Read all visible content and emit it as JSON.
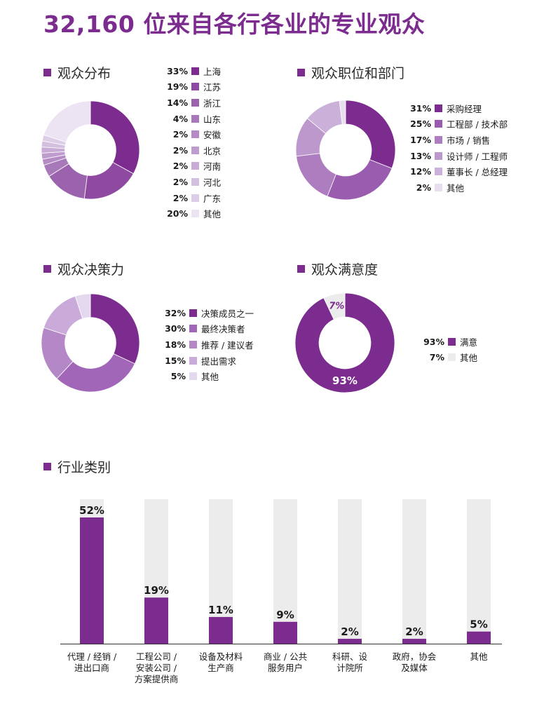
{
  "page": {
    "title": "32,160 位来自各行各业的专业观众"
  },
  "colors": {
    "accent": "#7b2c8e",
    "bar_background": "#ececec",
    "palette": [
      "#7b2c8e",
      "#8e4aa1",
      "#9b63ae",
      "#a779b9",
      "#b48bc4",
      "#be9ccd",
      "#c8acd6",
      "#d3bfe0",
      "#ddcde7",
      "#ece4f2"
    ]
  },
  "chart_data": [
    {
      "type": "pie",
      "title": "观众分布",
      "labels": [
        "上海",
        "江苏",
        "浙江",
        "山东",
        "安徽",
        "北京",
        "河南",
        "河北",
        "广东",
        "其他"
      ],
      "values": [
        33,
        19,
        14,
        4,
        2,
        2,
        2,
        2,
        2,
        20
      ],
      "value_labels": [
        "33%",
        "19%",
        "14%",
        "4%",
        "2%",
        "2%",
        "2%",
        "2%",
        "2%",
        "20%"
      ],
      "colors": [
        "#7b2c8e",
        "#8e4aa1",
        "#9b63ae",
        "#a779b9",
        "#b48bc4",
        "#be9ccd",
        "#c8acd6",
        "#d3bfe0",
        "#ddcde7",
        "#ece4f2"
      ]
    },
    {
      "type": "pie",
      "title": "观众职位和部门",
      "labels": [
        "采购经理",
        "工程部 / 技术部",
        "市场 / 销售",
        "设计师 / 工程师",
        "董事长 / 总经理",
        "其他"
      ],
      "values": [
        31,
        25,
        17,
        13,
        12,
        2
      ],
      "value_labels": [
        "31%",
        "25%",
        "17%",
        "13%",
        "12%",
        "2%"
      ],
      "colors": [
        "#7b2c8e",
        "#9a5caf",
        "#ad7dc0",
        "#bd98cd",
        "#cbb0da",
        "#e8def0"
      ]
    },
    {
      "type": "pie",
      "title": "观众决策力",
      "labels": [
        "决策成员之一",
        "最终决策者",
        "推荐 / 建议者",
        "提出需求",
        "其他"
      ],
      "values": [
        32,
        30,
        18,
        15,
        5
      ],
      "value_labels": [
        "32%",
        "30%",
        "18%",
        "15%",
        "5%"
      ],
      "colors": [
        "#7b2c8e",
        "#a166b7",
        "#b488c6",
        "#c9aad8",
        "#e4d8ee"
      ]
    },
    {
      "type": "pie",
      "title": "观众满意度",
      "labels": [
        "满意",
        "其他"
      ],
      "values": [
        93,
        7
      ],
      "value_labels": [
        "93%",
        "7%"
      ],
      "colors": [
        "#7b2c8e",
        "#ececec"
      ]
    },
    {
      "type": "bar",
      "title": "行业类别",
      "categories": [
        [
          "代理 / 经销 /",
          "进出口商"
        ],
        [
          "工程公司 /",
          "安装公司 /",
          "方案提供商"
        ],
        [
          "设备及材料",
          "生产商"
        ],
        [
          "商业 / 公共",
          "服务用户"
        ],
        [
          "科研、设",
          "计院所"
        ],
        [
          "政府，协会",
          "及媒体"
        ],
        [
          "其他"
        ]
      ],
      "values": [
        52,
        19,
        11,
        9,
        2,
        2,
        5
      ],
      "value_labels": [
        "52%",
        "19%",
        "11%",
        "9%",
        "2%",
        "2%",
        "5%"
      ],
      "ylim": [
        0,
        52
      ]
    }
  ]
}
